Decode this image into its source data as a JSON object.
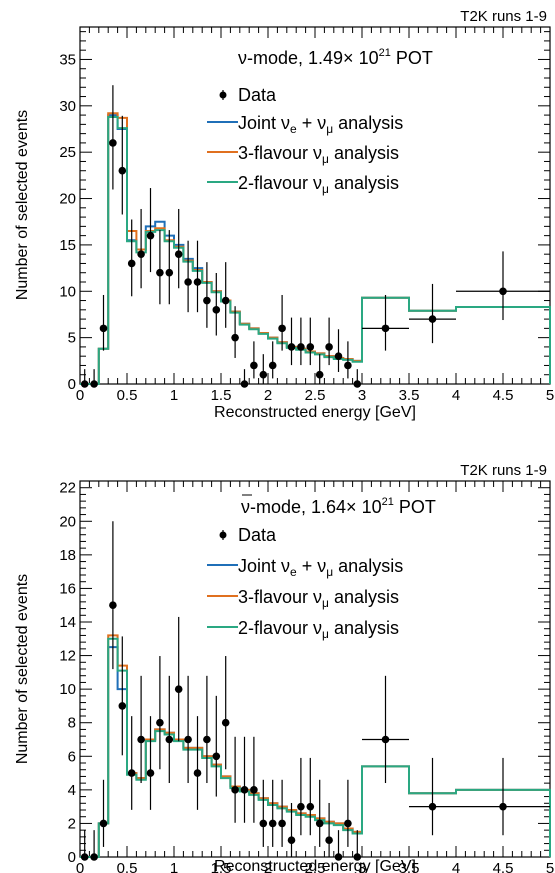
{
  "colors": {
    "data": "#000000",
    "joint": "#1f6fb8",
    "three_flavour": "#e0701f",
    "two_flavour": "#2aa882"
  },
  "chart_data": [
    {
      "type": "line",
      "header": "T2K runs 1-9",
      "mode_title": "ν-mode, 1.49× 10",
      "mode_exponent": "21",
      "mode_suffix": " POT",
      "xlabel": "Reconstructed energy [GeV]",
      "ylabel": "Number of selected events",
      "xlim": [
        0,
        5
      ],
      "ylim": [
        0,
        38.5
      ],
      "x_ticks": [
        {
          "v": 0,
          "label": "0"
        },
        {
          "v": 0.5,
          "label": "0.5"
        },
        {
          "v": 1,
          "label": "1"
        },
        {
          "v": 1.5,
          "label": "1.5"
        },
        {
          "v": 2,
          "label": "2"
        },
        {
          "v": 2.5,
          "label": "2.5"
        },
        {
          "v": 3,
          "label": "3"
        },
        {
          "v": 3.5,
          "label": "3.5"
        },
        {
          "v": 4,
          "label": "4"
        },
        {
          "v": 4.5,
          "label": "4.5"
        },
        {
          "v": 5,
          "label": "5"
        }
      ],
      "y_ticks": [
        {
          "v": 0,
          "label": "0"
        },
        {
          "v": 5,
          "label": "5"
        },
        {
          "v": 10,
          "label": "10"
        },
        {
          "v": 15,
          "label": "15"
        },
        {
          "v": 20,
          "label": "20"
        },
        {
          "v": 25,
          "label": "25"
        },
        {
          "v": 30,
          "label": "30"
        },
        {
          "v": 35,
          "label": "35"
        }
      ],
      "legend": {
        "data": "Data",
        "joint_a": "Joint ν",
        "joint_b": "e",
        "joint_c": " + ν",
        "joint_d": "μ",
        "joint_e": " analysis",
        "three_a": "3-flavour ν",
        "three_b": "μ",
        "three_c": " analysis",
        "two_a": "2-flavour ν",
        "two_b": "μ",
        "two_c": " analysis"
      },
      "bin_edges": [
        0,
        0.1,
        0.2,
        0.3,
        0.4,
        0.5,
        0.6,
        0.7,
        0.8,
        0.9,
        1.0,
        1.1,
        1.2,
        1.3,
        1.4,
        1.5,
        1.6,
        1.7,
        1.8,
        1.9,
        2.0,
        2.1,
        2.2,
        2.3,
        2.4,
        2.5,
        2.6,
        2.7,
        2.8,
        2.9,
        3.0,
        3.5,
        4.0,
        5.0
      ],
      "data_points": {
        "x": [
          0.05,
          0.15,
          0.25,
          0.35,
          0.45,
          0.55,
          0.65,
          0.75,
          0.85,
          0.95,
          1.05,
          1.15,
          1.25,
          1.35,
          1.45,
          1.55,
          1.65,
          1.75,
          1.85,
          1.95,
          2.05,
          2.15,
          2.25,
          2.35,
          2.45,
          2.55,
          2.65,
          2.75,
          2.85,
          2.95,
          3.25,
          3.75,
          4.5
        ],
        "y": [
          0,
          0,
          6,
          26,
          23,
          13,
          14,
          16,
          12,
          12,
          14,
          11,
          11,
          9,
          8,
          9,
          5,
          0,
          2,
          1,
          2,
          6,
          4,
          4,
          4,
          1,
          4,
          3,
          2,
          0,
          6,
          7,
          10
        ],
        "xerr": [
          0,
          0,
          0,
          0,
          0,
          0,
          0,
          0,
          0,
          0,
          0,
          0,
          0,
          0,
          0,
          0,
          0,
          0,
          0,
          0,
          0,
          0,
          0,
          0,
          0,
          0,
          0,
          0,
          0,
          0,
          0.25,
          0.25,
          0.5
        ]
      },
      "series": [
        {
          "name": "Joint analysis",
          "color_key": "joint",
          "values": [
            0,
            0,
            3.8,
            29,
            27.5,
            15.5,
            14.5,
            17,
            17.5,
            16,
            15,
            13.5,
            12.5,
            11,
            10,
            9,
            7.8,
            6.5,
            6,
            5.5,
            5,
            4.5,
            4,
            3.8,
            3.5,
            3.3,
            3,
            2.8,
            2.7,
            2.5,
            9.3,
            7.9,
            8.3
          ]
        },
        {
          "name": "3-flavour analysis",
          "color_key": "three_flavour",
          "values": [
            0,
            0,
            3.8,
            29.2,
            28.7,
            16.5,
            14.5,
            16.5,
            16.8,
            15.5,
            14.8,
            13.3,
            12.3,
            11,
            10,
            9,
            7.8,
            6.5,
            6,
            5.5,
            5,
            4.5,
            4,
            3.8,
            3.5,
            3.3,
            3,
            2.8,
            2.7,
            2.5,
            9.3,
            7.9,
            8.3
          ]
        },
        {
          "name": "2-flavour analysis",
          "color_key": "two_flavour",
          "values": [
            0,
            0,
            3.8,
            28.8,
            27.6,
            15.4,
            14.2,
            16.4,
            16.6,
            15.4,
            14.7,
            13.2,
            12.2,
            10.9,
            9.9,
            8.9,
            7.7,
            6.4,
            5.9,
            5.4,
            4.9,
            4.4,
            3.9,
            3.7,
            3.4,
            3.2,
            2.9,
            2.7,
            2.6,
            2.4,
            9.3,
            7.9,
            8.3
          ]
        }
      ]
    },
    {
      "type": "line",
      "header": "T2K runs 1-9",
      "mode_title": "ν-mode, 1.64× 10",
      "mode_exponent": "21",
      "mode_suffix": " POT",
      "xlabel": "Reconstructed energy [GeV]",
      "ylabel": "Number of selected events",
      "xlim": [
        0,
        5
      ],
      "ylim": [
        0,
        22.4
      ],
      "x_ticks": [
        {
          "v": 0,
          "label": "0"
        },
        {
          "v": 0.5,
          "label": "0.5"
        },
        {
          "v": 1,
          "label": "1"
        },
        {
          "v": 1.5,
          "label": "1.5"
        },
        {
          "v": 2,
          "label": "2"
        },
        {
          "v": 2.5,
          "label": "2.5"
        },
        {
          "v": 3,
          "label": "3"
        },
        {
          "v": 3.5,
          "label": "3.5"
        },
        {
          "v": 4,
          "label": "4"
        },
        {
          "v": 4.5,
          "label": "4.5"
        },
        {
          "v": 5,
          "label": "5"
        }
      ],
      "y_ticks": [
        {
          "v": 0,
          "label": "0"
        },
        {
          "v": 2,
          "label": "2"
        },
        {
          "v": 4,
          "label": "4"
        },
        {
          "v": 6,
          "label": "6"
        },
        {
          "v": 8,
          "label": "8"
        },
        {
          "v": 10,
          "label": "10"
        },
        {
          "v": 12,
          "label": "12"
        },
        {
          "v": 14,
          "label": "14"
        },
        {
          "v": 16,
          "label": "16"
        },
        {
          "v": 18,
          "label": "18"
        },
        {
          "v": 20,
          "label": "20"
        },
        {
          "v": 22,
          "label": "22"
        }
      ],
      "legend": {
        "data": "Data",
        "joint_a": "Joint ν",
        "joint_b": "e",
        "joint_c": " + ν",
        "joint_d": "μ",
        "joint_e": " analysis",
        "three_a": "3-flavour ν",
        "three_b": "μ",
        "three_c": " analysis",
        "two_a": "2-flavour ν",
        "two_b": "μ",
        "two_c": " analysis"
      },
      "bin_edges": [
        0,
        0.1,
        0.2,
        0.3,
        0.4,
        0.5,
        0.6,
        0.7,
        0.8,
        0.9,
        1.0,
        1.1,
        1.2,
        1.3,
        1.4,
        1.5,
        1.6,
        1.7,
        1.8,
        1.9,
        2.0,
        2.1,
        2.2,
        2.3,
        2.4,
        2.5,
        2.6,
        2.7,
        2.8,
        2.9,
        3.0,
        3.5,
        4.0,
        5.0
      ],
      "data_points": {
        "x": [
          0.05,
          0.15,
          0.25,
          0.35,
          0.45,
          0.55,
          0.65,
          0.75,
          0.85,
          0.95,
          1.05,
          1.15,
          1.25,
          1.35,
          1.45,
          1.55,
          1.65,
          1.75,
          1.85,
          1.95,
          2.05,
          2.15,
          2.25,
          2.35,
          2.45,
          2.55,
          2.65,
          2.75,
          2.85,
          2.95,
          3.25,
          3.75,
          4.5
        ],
        "y": [
          0,
          0,
          2,
          15,
          9,
          5,
          7,
          5,
          8,
          7,
          10,
          7,
          5,
          7,
          6,
          8,
          4,
          4,
          4,
          2,
          2,
          2,
          1,
          3,
          3,
          2,
          1,
          0,
          2,
          0,
          7,
          3,
          3
        ],
        "xerr": [
          0,
          0,
          0,
          0,
          0,
          0,
          0,
          0,
          0,
          0,
          0,
          0,
          0,
          0,
          0,
          0,
          0,
          0,
          0,
          0,
          0,
          0,
          0,
          0,
          0,
          0,
          0,
          0,
          0,
          0,
          0.25,
          0.25,
          0.5
        ]
      },
      "series": [
        {
          "name": "Joint analysis",
          "color_key": "joint",
          "values": [
            0,
            0,
            2.0,
            12.5,
            10.0,
            5.0,
            4.7,
            7.0,
            7.6,
            7.4,
            7.0,
            6.5,
            6.5,
            6.0,
            5.5,
            4.8,
            4.2,
            4.0,
            3.8,
            3.5,
            3.2,
            3.0,
            2.8,
            2.6,
            2.5,
            2.3,
            2.1,
            2.0,
            1.7,
            1.5,
            5.4,
            3.8,
            4.0
          ]
        },
        {
          "name": "3-flavour analysis",
          "color_key": "three_flavour",
          "values": [
            0,
            0,
            2.0,
            13.2,
            11.4,
            5.0,
            4.7,
            7.0,
            7.6,
            7.4,
            7.0,
            6.5,
            6.5,
            6.0,
            5.5,
            4.8,
            4.2,
            4.0,
            3.8,
            3.5,
            3.2,
            3.0,
            2.8,
            2.6,
            2.5,
            2.3,
            2.1,
            2.0,
            1.7,
            1.5,
            5.4,
            3.8,
            4.0
          ]
        },
        {
          "name": "2-flavour analysis",
          "color_key": "two_flavour",
          "values": [
            0,
            0,
            2.0,
            13.0,
            11.1,
            4.9,
            4.6,
            6.9,
            7.5,
            7.3,
            6.9,
            6.4,
            6.4,
            5.9,
            5.4,
            4.7,
            4.1,
            3.9,
            3.7,
            3.4,
            3.1,
            2.9,
            2.7,
            2.5,
            2.4,
            2.2,
            2.0,
            1.9,
            1.6,
            1.4,
            5.4,
            3.8,
            4.0
          ]
        }
      ]
    }
  ]
}
